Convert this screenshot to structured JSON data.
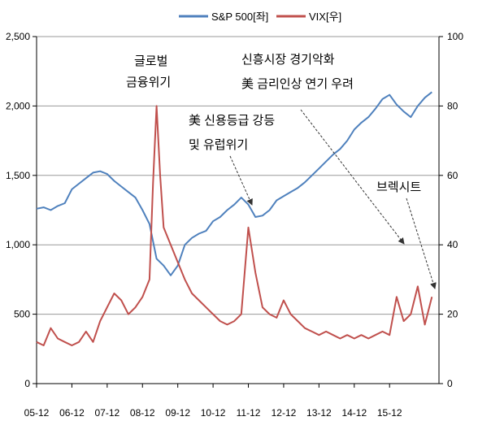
{
  "chart_data": {
    "type": "line",
    "legend": {
      "placement": "top-center",
      "entries": [
        {
          "label": "S&P 500[좌]",
          "color": "#4f81bd"
        },
        {
          "label": "VIX[우]",
          "color": "#c0504d"
        }
      ]
    },
    "x_tick_labels": [
      "05-12",
      "06-12",
      "07-12",
      "08-12",
      "09-12",
      "10-12",
      "11-12",
      "12-12",
      "13-12",
      "14-12",
      "15-12"
    ],
    "y_left": {
      "min": 0,
      "max": 2500,
      "step": 500,
      "tick_labels": [
        "0",
        "500",
        "1,000",
        "1,500",
        "2,000",
        "2,500"
      ]
    },
    "y_right": {
      "min": 0,
      "max": 100,
      "step": 20,
      "tick_labels": [
        "0",
        "20",
        "40",
        "60",
        "80",
        "100"
      ]
    },
    "grid": "horizontal",
    "series": [
      {
        "name": "S&P 500[좌]",
        "axis": "left",
        "color": "#4f81bd",
        "points": [
          [
            0,
            1260
          ],
          [
            0.2,
            1270
          ],
          [
            0.4,
            1250
          ],
          [
            0.6,
            1280
          ],
          [
            0.8,
            1300
          ],
          [
            1.0,
            1400
          ],
          [
            1.2,
            1440
          ],
          [
            1.4,
            1480
          ],
          [
            1.6,
            1520
          ],
          [
            1.8,
            1530
          ],
          [
            2.0,
            1510
          ],
          [
            2.2,
            1460
          ],
          [
            2.4,
            1420
          ],
          [
            2.6,
            1380
          ],
          [
            2.8,
            1340
          ],
          [
            3.0,
            1250
          ],
          [
            3.2,
            1150
          ],
          [
            3.4,
            900
          ],
          [
            3.6,
            850
          ],
          [
            3.8,
            780
          ],
          [
            4.0,
            850
          ],
          [
            4.2,
            1000
          ],
          [
            4.4,
            1050
          ],
          [
            4.6,
            1080
          ],
          [
            4.8,
            1100
          ],
          [
            5.0,
            1170
          ],
          [
            5.2,
            1200
          ],
          [
            5.4,
            1250
          ],
          [
            5.6,
            1290
          ],
          [
            5.8,
            1340
          ],
          [
            6.0,
            1290
          ],
          [
            6.2,
            1200
          ],
          [
            6.4,
            1210
          ],
          [
            6.6,
            1250
          ],
          [
            6.8,
            1320
          ],
          [
            7.0,
            1350
          ],
          [
            7.2,
            1380
          ],
          [
            7.4,
            1410
          ],
          [
            7.6,
            1450
          ],
          [
            7.8,
            1500
          ],
          [
            8.0,
            1550
          ],
          [
            8.2,
            1600
          ],
          [
            8.4,
            1650
          ],
          [
            8.6,
            1690
          ],
          [
            8.8,
            1750
          ],
          [
            9.0,
            1830
          ],
          [
            9.2,
            1880
          ],
          [
            9.4,
            1920
          ],
          [
            9.6,
            1980
          ],
          [
            9.8,
            2050
          ],
          [
            10.0,
            2080
          ],
          [
            10.2,
            2010
          ],
          [
            10.4,
            1960
          ],
          [
            10.6,
            1920
          ],
          [
            10.8,
            2000
          ],
          [
            11.0,
            2060
          ],
          [
            11.2,
            2100
          ]
        ]
      },
      {
        "name": "VIX[우]",
        "axis": "right",
        "color": "#c0504d",
        "points": [
          [
            0,
            12
          ],
          [
            0.2,
            11
          ],
          [
            0.4,
            16
          ],
          [
            0.6,
            13
          ],
          [
            0.8,
            12
          ],
          [
            1.0,
            11
          ],
          [
            1.2,
            12
          ],
          [
            1.4,
            15
          ],
          [
            1.6,
            12
          ],
          [
            1.8,
            18
          ],
          [
            2.0,
            22
          ],
          [
            2.2,
            26
          ],
          [
            2.4,
            24
          ],
          [
            2.6,
            20
          ],
          [
            2.8,
            22
          ],
          [
            3.0,
            25
          ],
          [
            3.2,
            30
          ],
          [
            3.3,
            58
          ],
          [
            3.4,
            80
          ],
          [
            3.5,
            60
          ],
          [
            3.6,
            45
          ],
          [
            3.8,
            40
          ],
          [
            4.0,
            35
          ],
          [
            4.2,
            30
          ],
          [
            4.4,
            26
          ],
          [
            4.6,
            24
          ],
          [
            4.8,
            22
          ],
          [
            5.0,
            20
          ],
          [
            5.2,
            18
          ],
          [
            5.4,
            17
          ],
          [
            5.6,
            18
          ],
          [
            5.8,
            20
          ],
          [
            6.0,
            45
          ],
          [
            6.2,
            32
          ],
          [
            6.4,
            22
          ],
          [
            6.6,
            20
          ],
          [
            6.8,
            19
          ],
          [
            7.0,
            24
          ],
          [
            7.2,
            20
          ],
          [
            7.4,
            18
          ],
          [
            7.6,
            16
          ],
          [
            7.8,
            15
          ],
          [
            8.0,
            14
          ],
          [
            8.2,
            15
          ],
          [
            8.4,
            14
          ],
          [
            8.6,
            13
          ],
          [
            8.8,
            14
          ],
          [
            9.0,
            13
          ],
          [
            9.2,
            14
          ],
          [
            9.4,
            13
          ],
          [
            9.6,
            14
          ],
          [
            9.8,
            15
          ],
          [
            10.0,
            14
          ],
          [
            10.2,
            25
          ],
          [
            10.4,
            18
          ],
          [
            10.6,
            20
          ],
          [
            10.8,
            28
          ],
          [
            11.0,
            17
          ],
          [
            11.2,
            25
          ]
        ]
      }
    ],
    "annotations": [
      {
        "lines": [
          "글로벌",
          "금융위기"
        ]
      },
      {
        "lines": [
          "美 신용등급 강등",
          "및 유럽위기"
        ]
      },
      {
        "lines": [
          "신흥시장 경기악화",
          "美 금리인상 연기 우려"
        ]
      },
      {
        "lines": [
          "브렉시트"
        ]
      }
    ]
  }
}
